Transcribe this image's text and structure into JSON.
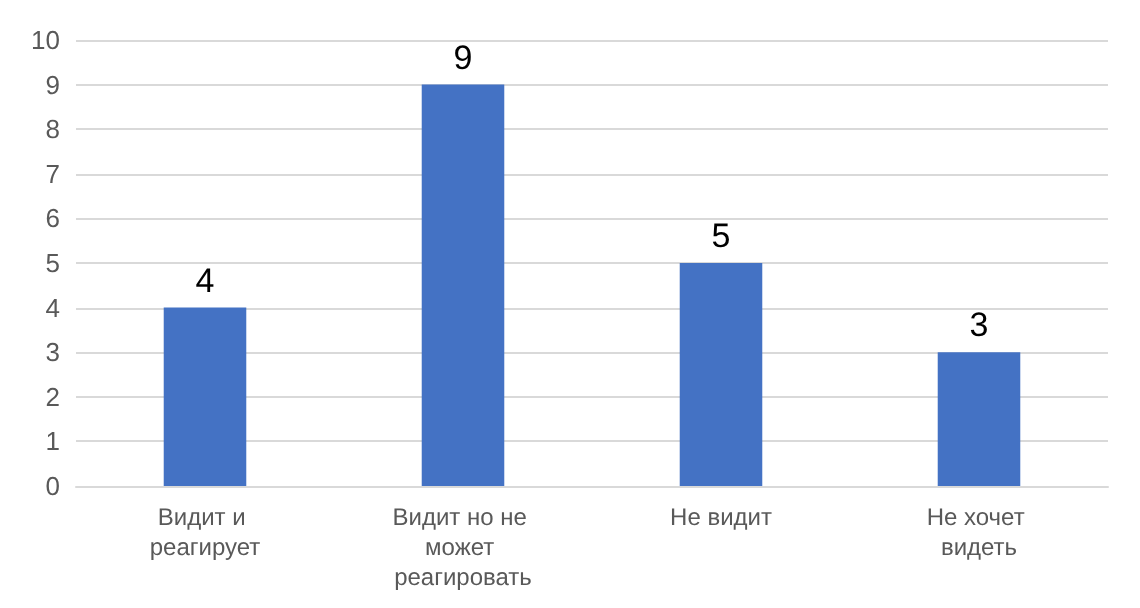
{
  "chart_data": {
    "type": "bar",
    "categories": [
      "Видит и реагирует",
      "Видит но не может реагировать",
      "Не видит",
      "Не хочет видеть"
    ],
    "values": [
      4,
      9,
      5,
      3
    ],
    "color": "#4472c4",
    "ylim": [
      0,
      10
    ],
    "yticks": [
      0,
      1,
      2,
      3,
      4,
      5,
      6,
      7,
      8,
      9,
      10
    ],
    "grid": "y",
    "data_labels": true
  }
}
